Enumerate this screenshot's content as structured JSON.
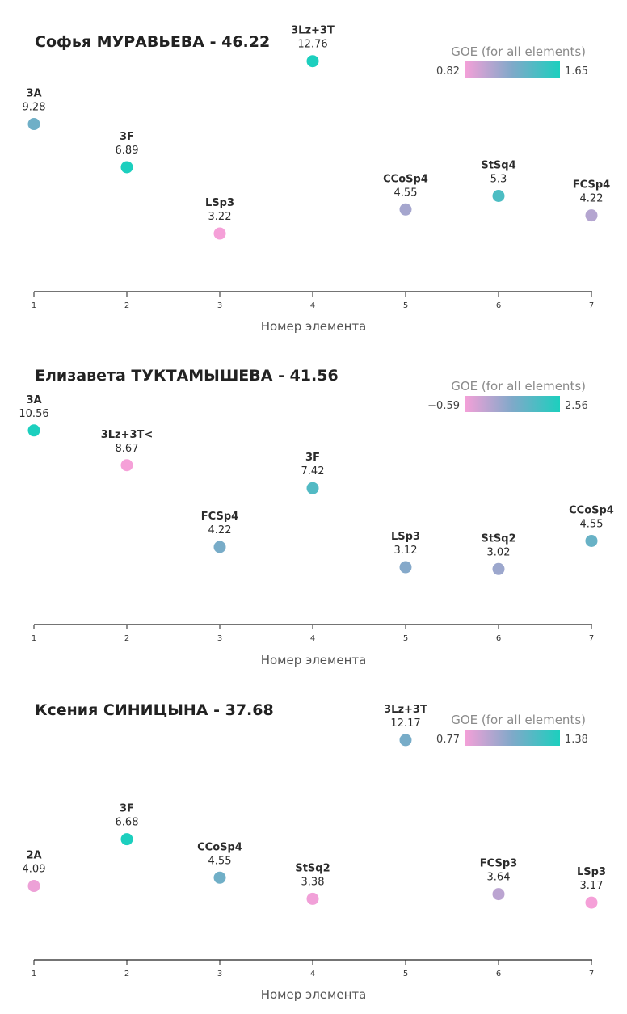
{
  "x_axis_label": "Номер элемента",
  "legend_title": "GOE (for all elements)",
  "colors": {
    "low": "#f5a0d8",
    "mid": "#7fa9c9",
    "high": "#1ccfbe"
  },
  "chart_data": [
    {
      "type": "scatter",
      "title": "Софья МУРАВЬЕВА - 46.22",
      "xlabel": "Номер элемента",
      "x_ticks": [
        1,
        2,
        3,
        4,
        5,
        6,
        7
      ],
      "ylim": [
        0,
        14
      ],
      "goe_range": [
        "0.82",
        "1.65"
      ],
      "points": [
        {
          "x": 1,
          "element": "3A",
          "value": 9.28,
          "label": "9.28",
          "goe": 1.3
        },
        {
          "x": 2,
          "element": "3F",
          "value": 6.89,
          "label": "6.89",
          "goe": 1.65
        },
        {
          "x": 3,
          "element": "LSp3",
          "value": 3.22,
          "label": "3.22",
          "goe": 0.82
        },
        {
          "x": 4,
          "element": "3Lz+3T",
          "value": 12.76,
          "label": "12.76",
          "goe": 1.65
        },
        {
          "x": 5,
          "element": "CCoSp4",
          "value": 4.55,
          "label": "4.55",
          "goe": 1.1
        },
        {
          "x": 6,
          "element": "StSq4",
          "value": 5.3,
          "label": "5.3",
          "goe": 1.45
        },
        {
          "x": 7,
          "element": "FCSp4",
          "value": 4.22,
          "label": "4.22",
          "goe": 1.05
        }
      ]
    },
    {
      "type": "scatter",
      "title": "Елизавета ТУКТАМЫШЕВА - 41.56",
      "xlabel": "Номер элемента",
      "x_ticks": [
        1,
        2,
        3,
        4,
        5,
        6,
        7
      ],
      "ylim": [
        0,
        12
      ],
      "goe_range": [
        "−0.59",
        "2.56"
      ],
      "points": [
        {
          "x": 1,
          "element": "3A",
          "value": 10.56,
          "label": "10.56",
          "goe": 2.56
        },
        {
          "x": 2,
          "element": "3Lz+3T<",
          "value": 8.67,
          "label": "8.67",
          "goe": -0.59
        },
        {
          "x": 3,
          "element": "FCSp4",
          "value": 4.22,
          "label": "4.22",
          "goe": 1.1
        },
        {
          "x": 4,
          "element": "3F",
          "value": 7.42,
          "label": "7.42",
          "goe": 1.7
        },
        {
          "x": 5,
          "element": "LSp3",
          "value": 3.12,
          "label": "3.12",
          "goe": 0.9
        },
        {
          "x": 6,
          "element": "StSq2",
          "value": 3.02,
          "label": "3.02",
          "goe": 0.6
        },
        {
          "x": 7,
          "element": "CCoSp4",
          "value": 4.55,
          "label": "4.55",
          "goe": 1.35
        }
      ]
    },
    {
      "type": "scatter",
      "title": "Ксения СИНИЦЫНА - 37.68",
      "xlabel": "Номер элемента",
      "x_ticks": [
        1,
        2,
        3,
        4,
        5,
        6,
        7
      ],
      "ylim": [
        0,
        14
      ],
      "goe_range": [
        "0.77",
        "1.38"
      ],
      "points": [
        {
          "x": 1,
          "element": "2A",
          "value": 4.09,
          "label": "4.09",
          "goe": 0.79
        },
        {
          "x": 2,
          "element": "3F",
          "value": 6.68,
          "label": "6.68",
          "goe": 1.38
        },
        {
          "x": 3,
          "element": "CCoSp4",
          "value": 4.55,
          "label": "4.55",
          "goe": 1.12
        },
        {
          "x": 4,
          "element": "StSq2",
          "value": 3.38,
          "label": "3.38",
          "goe": 0.78
        },
        {
          "x": 5,
          "element": "3Lz+3T",
          "value": 12.17,
          "label": "12.17",
          "goe": 1.1
        },
        {
          "x": 6,
          "element": "FCSp3",
          "value": 3.64,
          "label": "3.64",
          "goe": 0.92
        },
        {
          "x": 7,
          "element": "LSp3",
          "value": 3.17,
          "label": "3.17",
          "goe": 0.77
        }
      ]
    }
  ]
}
